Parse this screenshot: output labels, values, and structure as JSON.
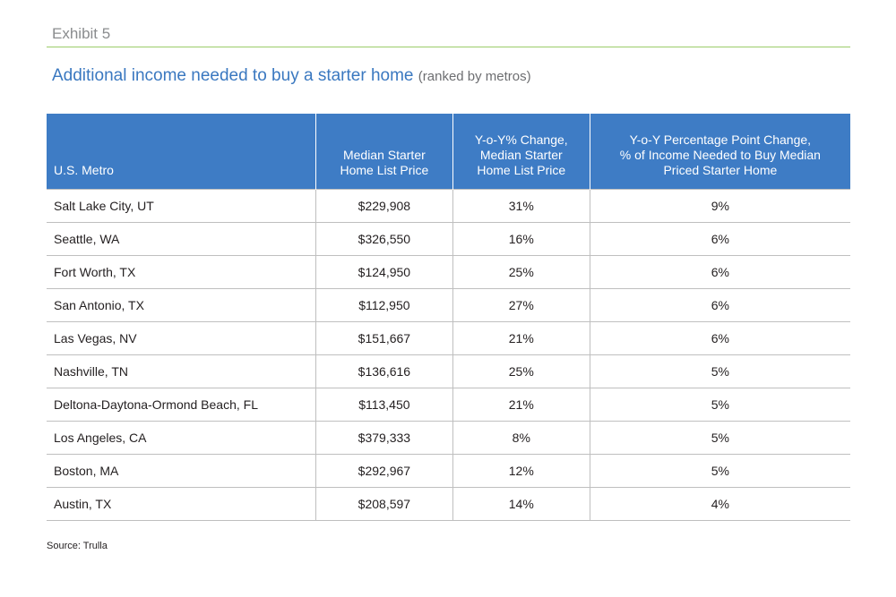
{
  "exhibit_label": "Exhibit 5",
  "title": "Additional income needed to buy a starter home",
  "subtitle": "(ranked by metros)",
  "source": "Source: Trulla",
  "colors": {
    "header_bg": "#3e7cc5",
    "title": "#3a78c0",
    "rule": "#9ccc6a"
  },
  "chart_data": {
    "type": "table",
    "title": "Additional income needed to buy a starter home",
    "columns": [
      [
        "U.S. Metro"
      ],
      [
        "Median Starter",
        "Home List Price"
      ],
      [
        "Y-o-Y% Change,",
        "Median Starter",
        "Home List Price"
      ],
      [
        "Y-o-Y Percentage Point Change,",
        "% of Income Needed to Buy Median",
        "Priced Starter Home"
      ]
    ],
    "rows": [
      [
        "Salt Lake City, UT",
        "$229,908",
        "31%",
        "9%"
      ],
      [
        "Seattle, WA",
        "$326,550",
        "16%",
        "6%"
      ],
      [
        "Fort Worth, TX",
        "$124,950",
        "25%",
        "6%"
      ],
      [
        "San Antonio, TX",
        "$112,950",
        "27%",
        "6%"
      ],
      [
        "Las Vegas, NV",
        "$151,667",
        "21%",
        "6%"
      ],
      [
        "Nashville, TN",
        "$136,616",
        "25%",
        "5%"
      ],
      [
        "Deltona-Daytona-Ormond Beach, FL",
        "$113,450",
        "21%",
        "5%"
      ],
      [
        "Los Angeles, CA",
        "$379,333",
        "8%",
        "5%"
      ],
      [
        "Boston, MA",
        "$292,967",
        "12%",
        "5%"
      ],
      [
        "Austin, TX",
        "$208,597",
        "14%",
        "4%"
      ]
    ]
  }
}
